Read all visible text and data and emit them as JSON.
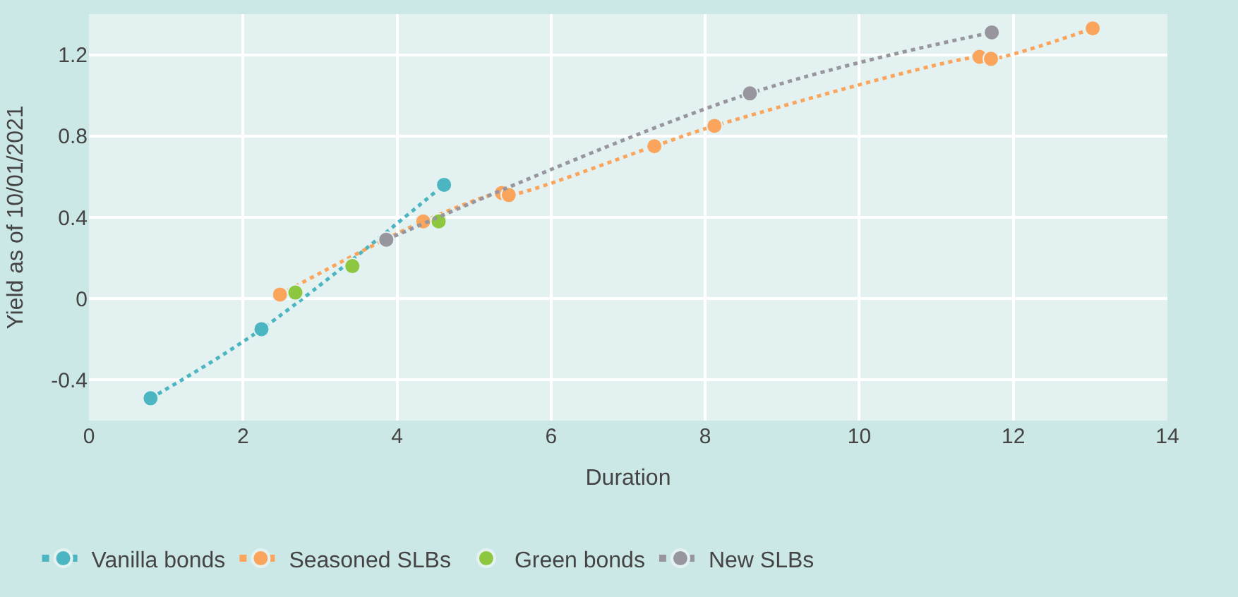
{
  "chart_data": {
    "type": "line",
    "xlabel": "Duration",
    "ylabel": "Yield as of 10/01/2021",
    "xlim": [
      0,
      14
    ],
    "xticks": [
      0,
      2,
      4,
      6,
      8,
      10,
      12,
      14
    ],
    "ylim": [
      -0.6,
      1.4
    ],
    "yticks": [
      -0.4,
      0,
      0.4,
      0.8,
      1.2
    ],
    "grid": true,
    "legend": "bottom",
    "marker": "circle",
    "line_style": "dotted",
    "series": [
      {
        "name": "Vanilla bonds",
        "color": "#4bb5c1",
        "x": [
          0.8,
          2.24,
          4.61
        ],
        "values": [
          -0.49,
          -0.15,
          0.56
        ]
      },
      {
        "name": "Seasoned SLBs",
        "color": "#fba45c",
        "x": [
          2.48,
          4.34,
          5.36,
          5.45,
          7.34,
          8.12,
          11.56,
          11.71,
          13.03
        ],
        "values": [
          0.02,
          0.38,
          0.52,
          0.51,
          0.75,
          0.85,
          1.19,
          1.18,
          1.33
        ]
      },
      {
        "name": "Green bonds",
        "color": "#8dc63f",
        "type": "scatter",
        "x": [
          2.68,
          3.42,
          4.54
        ],
        "values": [
          0.03,
          0.16,
          0.38
        ]
      },
      {
        "name": "New SLBs",
        "color": "#97969f",
        "x": [
          3.86,
          8.58,
          11.72
        ],
        "values": [
          0.29,
          1.01,
          1.31
        ]
      }
    ]
  }
}
